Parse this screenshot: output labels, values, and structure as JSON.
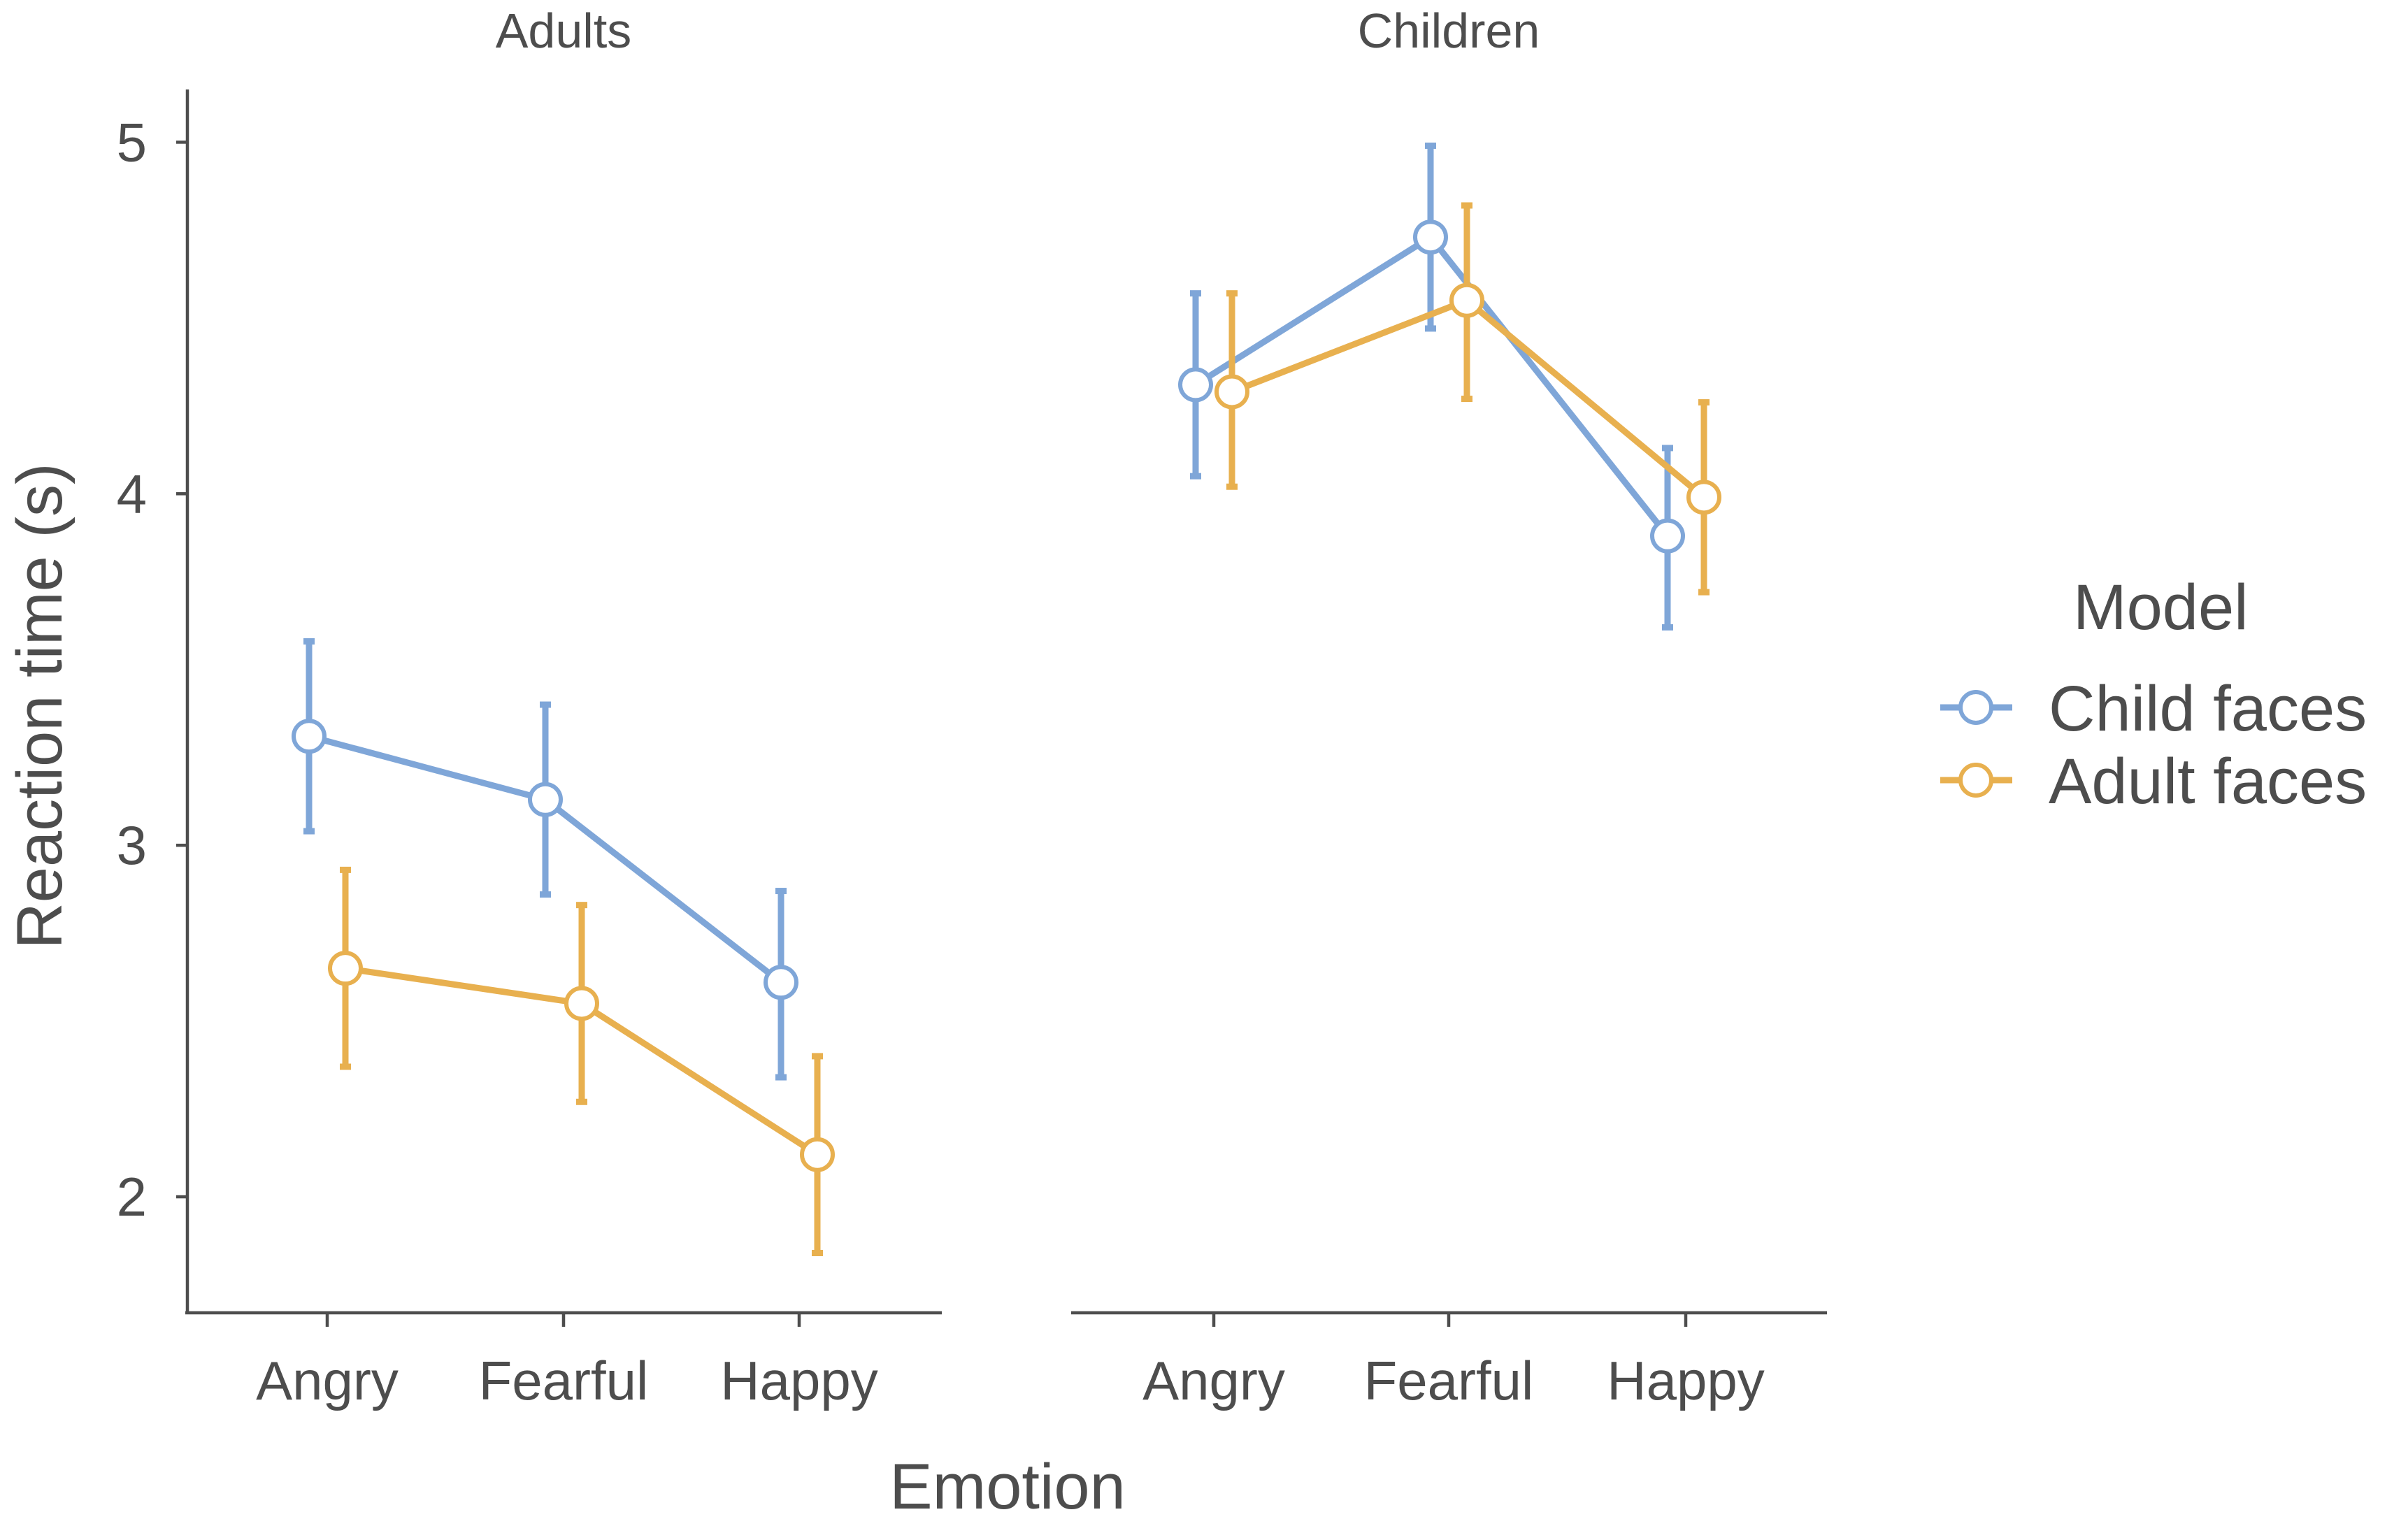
{
  "chart_data": {
    "type": "line",
    "facets": [
      "Adults",
      "Children"
    ],
    "categories": [
      "Angry",
      "Fearful",
      "Happy"
    ],
    "xlabel": "Emotion",
    "ylabel": "Reaction time (s)",
    "ylim": [
      1.67,
      5.15
    ],
    "yticks": [
      2,
      3,
      4,
      5
    ],
    "legend": {
      "title": "Model",
      "position": "right"
    },
    "series": [
      {
        "name": "Child faces",
        "color": "#7fa6d8",
        "panels": [
          {
            "facet": "Adults",
            "values": [
              3.31,
              3.13,
              2.61
            ],
            "lower": [
              3.04,
              2.86,
              2.34
            ],
            "upper": [
              3.58,
              3.4,
              2.87
            ]
          },
          {
            "facet": "Children",
            "values": [
              4.31,
              4.73,
              3.88
            ],
            "lower": [
              4.05,
              4.47,
              3.62
            ],
            "upper": [
              4.57,
              4.99,
              4.13
            ]
          }
        ]
      },
      {
        "name": "Adult faces",
        "color": "#e8b04f",
        "panels": [
          {
            "facet": "Adults",
            "values": [
              2.65,
              2.55,
              2.12
            ],
            "lower": [
              2.37,
              2.27,
              1.84
            ],
            "upper": [
              2.93,
              2.83,
              2.4
            ]
          },
          {
            "facet": "Children",
            "values": [
              4.29,
              4.55,
              3.99
            ],
            "lower": [
              4.02,
              4.27,
              3.72
            ],
            "upper": [
              4.57,
              4.82,
              4.26
            ]
          }
        ]
      }
    ]
  }
}
